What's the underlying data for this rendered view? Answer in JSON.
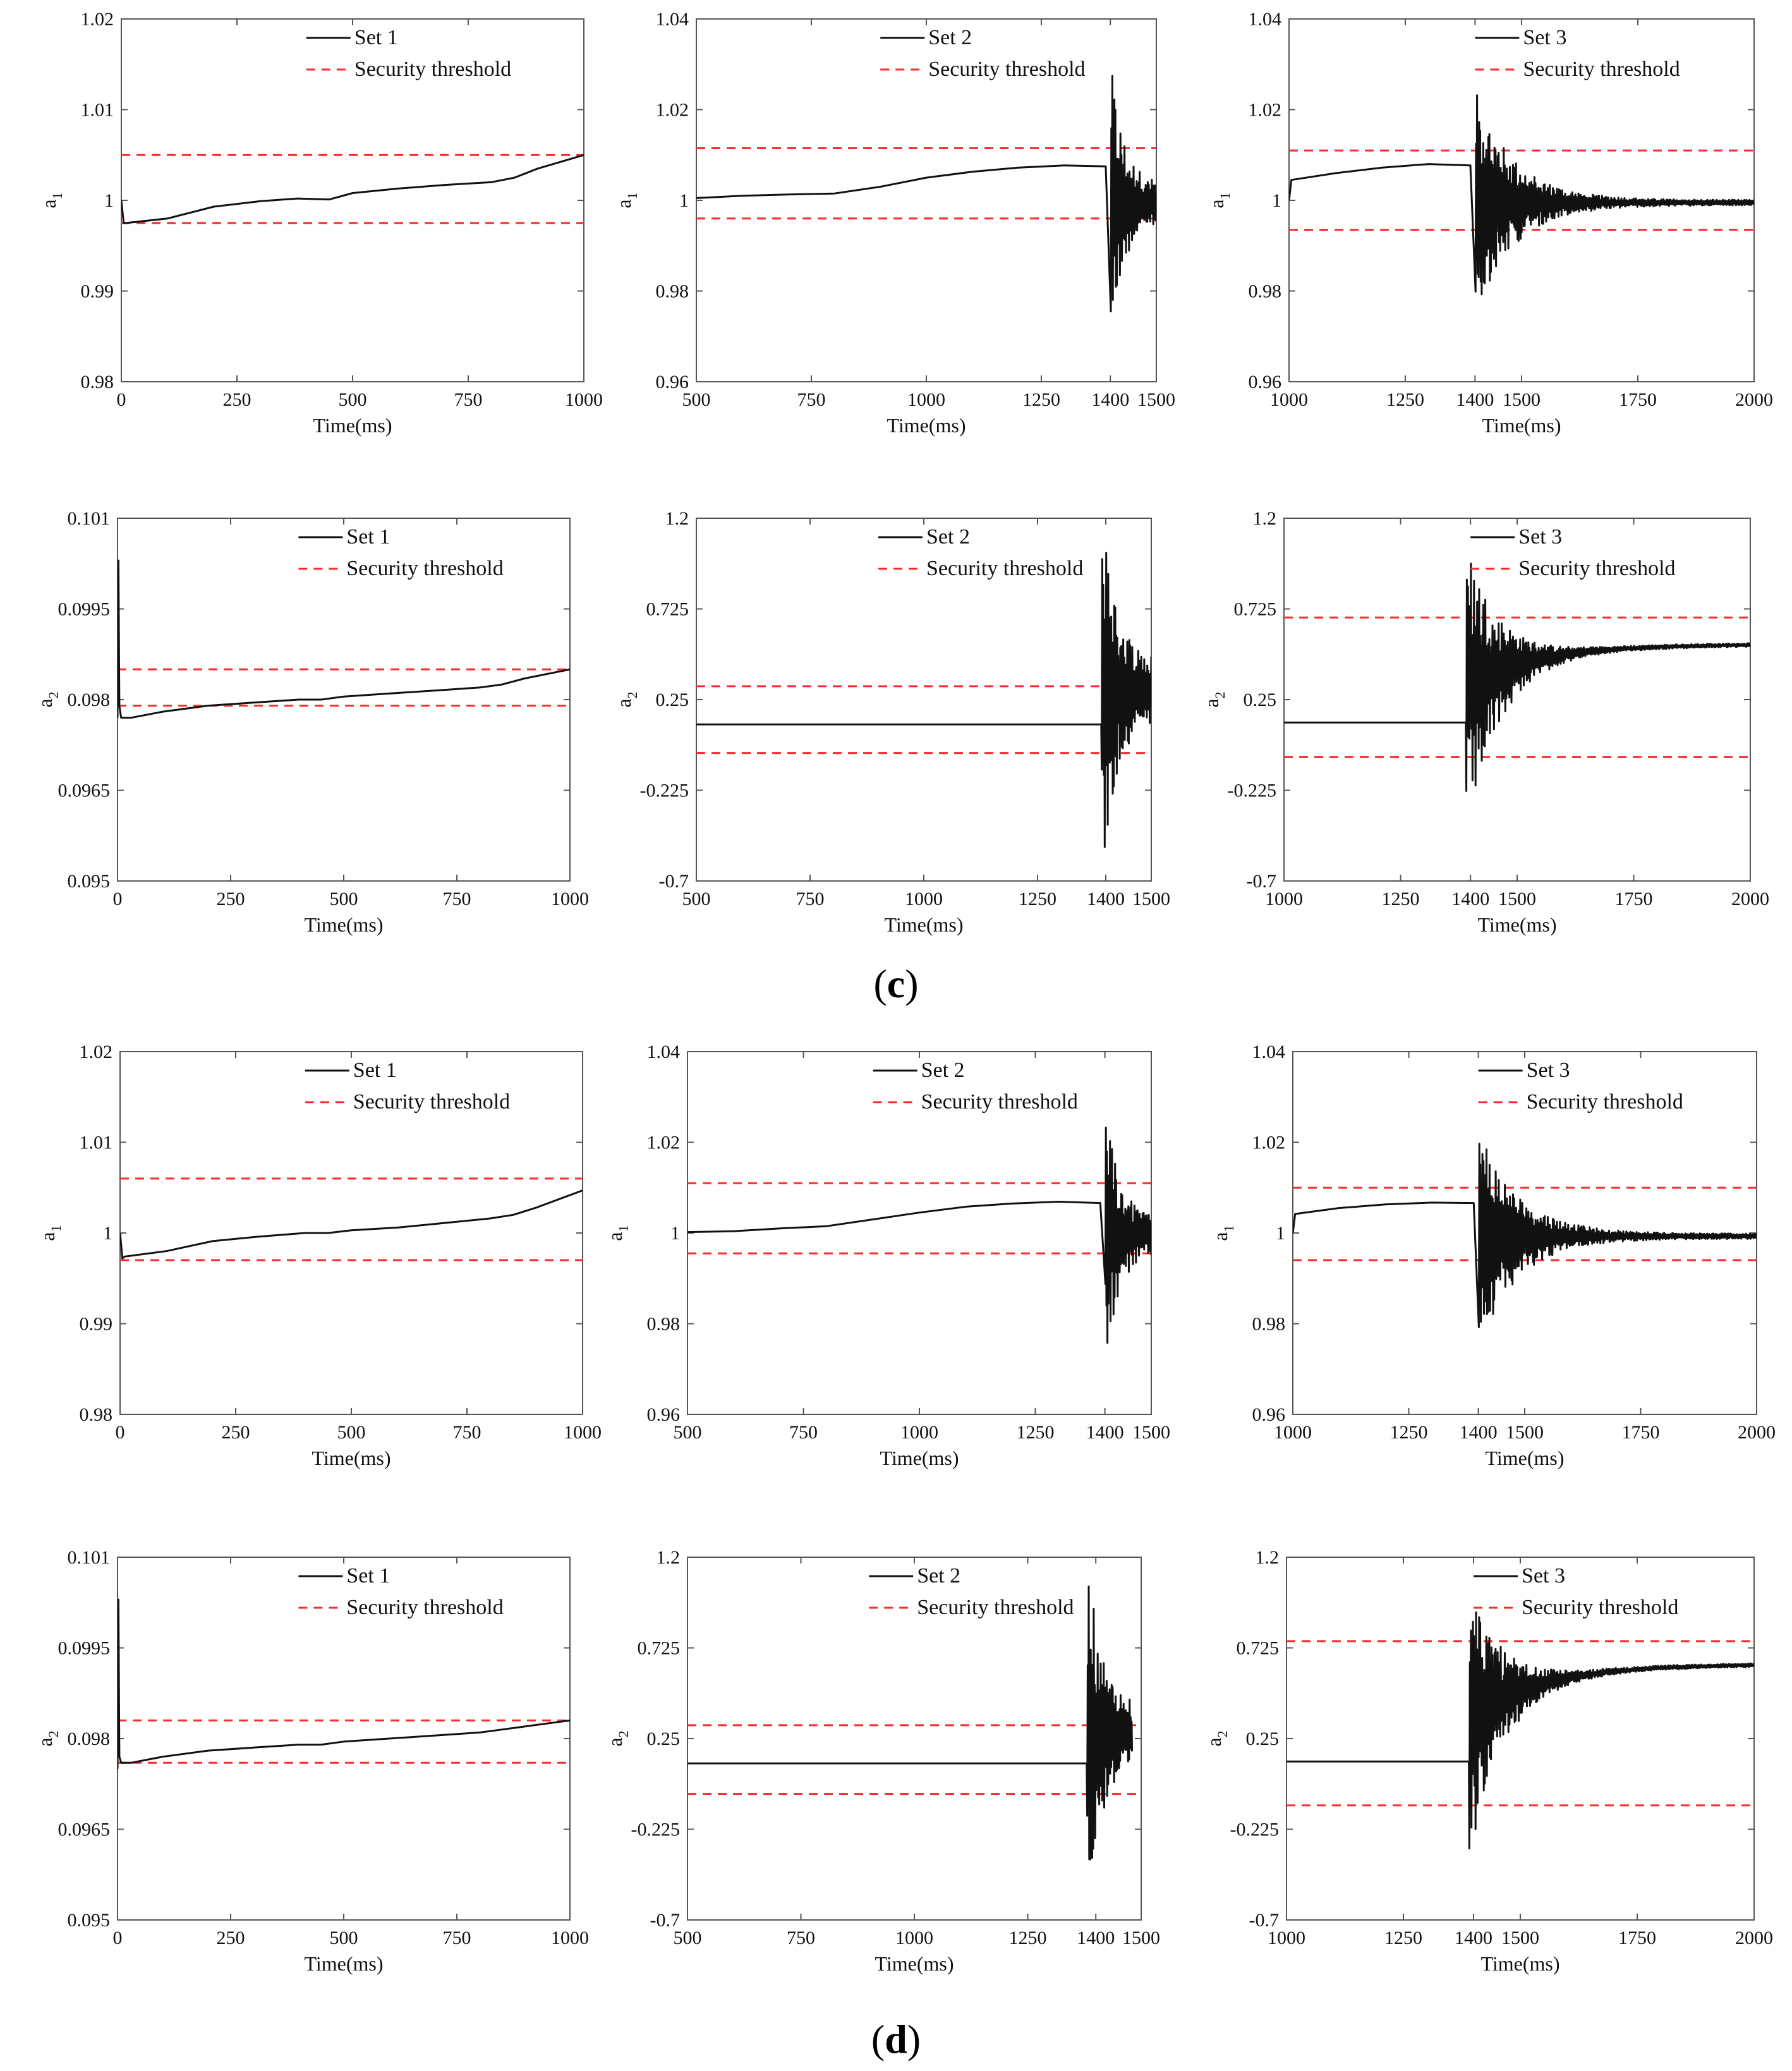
{
  "colors": {
    "series": "#111111",
    "threshold": "#ff2a2a",
    "axis": "#555555",
    "background": "#ffffff"
  },
  "panel_labels": [
    {
      "open": "(",
      "letter": "c",
      "close": ")"
    },
    {
      "open": "(",
      "letter": "d",
      "close": ")"
    }
  ],
  "chart_data": [
    {
      "id": "c-a1-set1",
      "type": "line",
      "group": "c",
      "ylabel_base": "a",
      "ylabel_sub": "1",
      "xlabel": "Time(ms)",
      "xlim": [
        0,
        1000
      ],
      "xticks": [
        0,
        250,
        500,
        750,
        1000
      ],
      "xtick_labels": [
        "0",
        "250",
        "500",
        "750",
        "1000"
      ],
      "ylim": [
        0.98,
        1.02
      ],
      "yticks": [
        0.98,
        0.99,
        1.0,
        1.01,
        1.02
      ],
      "ytick_labels": [
        "0.98",
        "0.99",
        "1",
        "1.01",
        "1.02"
      ],
      "legend": {
        "series": "Set 1",
        "threshold": "Security threshold"
      },
      "series": [
        {
          "name": "Set 1",
          "kind": "smooth",
          "x": [
            0,
            5,
            10,
            100,
            200,
            300,
            380,
            450,
            500,
            600,
            700,
            800,
            850,
            900,
            1000
          ],
          "y": [
            1.0,
            0.9975,
            0.9975,
            0.998,
            0.9993,
            0.9999,
            1.0002,
            1.0001,
            1.0008,
            1.0013,
            1.0017,
            1.002,
            1.0025,
            1.0035,
            1.005
          ]
        }
      ],
      "thresholds": [
        1.005,
        0.9975
      ]
    },
    {
      "id": "c-a1-set2",
      "type": "line",
      "group": "c",
      "ylabel_base": "a",
      "ylabel_sub": "1",
      "xlabel": "Time(ms)",
      "xlim": [
        500,
        1500
      ],
      "xticks": [
        500,
        750,
        1000,
        1250,
        1400,
        1500
      ],
      "xtick_labels": [
        "500",
        "750",
        "1000",
        "1250",
        "1400",
        "1500"
      ],
      "ylim": [
        0.96,
        1.04
      ],
      "yticks": [
        0.96,
        0.98,
        1.0,
        1.02,
        1.04
      ],
      "ytick_labels": [
        "0.96",
        "0.98",
        "1",
        "1.02",
        "1.04"
      ],
      "legend": {
        "series": "Set 2",
        "threshold": "Security threshold"
      },
      "series": [
        {
          "name": "Set 2",
          "kind": "smooth+oscillation",
          "x": [
            500,
            600,
            700,
            800,
            900,
            1000,
            1100,
            1200,
            1300,
            1390
          ],
          "y": [
            1.0005,
            1.001,
            1.0013,
            1.0015,
            1.003,
            1.005,
            1.0063,
            1.0072,
            1.0077,
            1.0075
          ],
          "osc_start": 1400,
          "osc_end": 1500,
          "osc_center": 0.9995,
          "osc_start_amp": 0.032,
          "osc_end_amp": 0.004,
          "osc_decay": 0.035
        }
      ],
      "thresholds": [
        1.0115,
        0.996
      ]
    },
    {
      "id": "c-a1-set3",
      "type": "line",
      "group": "c",
      "ylabel_base": "a",
      "ylabel_sub": "1",
      "xlabel": "Time(ms)",
      "xlim": [
        1000,
        2000
      ],
      "xticks": [
        1000,
        1250,
        1400,
        1500,
        1750,
        2000
      ],
      "xtick_labels": [
        "1000",
        "1250",
        "1400",
        "1500",
        "1750",
        "2000"
      ],
      "ylim": [
        0.96,
        1.04
      ],
      "yticks": [
        0.96,
        0.98,
        1.0,
        1.02,
        1.04
      ],
      "ytick_labels": [
        "0.96",
        "0.98",
        "1",
        "1.02",
        "1.04"
      ],
      "legend": {
        "series": "Set 3",
        "threshold": "Security threshold"
      },
      "series": [
        {
          "name": "Set 3",
          "kind": "smooth+oscillation",
          "x": [
            1000,
            1005,
            1100,
            1200,
            1300,
            1390
          ],
          "y": [
            1.0,
            1.0045,
            1.006,
            1.0072,
            1.008,
            1.0077
          ],
          "osc_start": 1400,
          "osc_end": 2000,
          "osc_center": 0.9995,
          "osc_start_amp": 0.025,
          "osc_end_amp": 0.0006,
          "osc_decay": 0.012
        }
      ],
      "thresholds": [
        1.011,
        0.9935
      ]
    },
    {
      "id": "c-a2-set1",
      "type": "line",
      "group": "c",
      "ylabel_base": "a",
      "ylabel_sub": "2",
      "xlabel": "Time(ms)",
      "xlim": [
        0,
        1000
      ],
      "xticks": [
        0,
        250,
        500,
        750,
        1000
      ],
      "xtick_labels": [
        "0",
        "250",
        "500",
        "750",
        "1000"
      ],
      "ylim": [
        0.095,
        0.101
      ],
      "yticks": [
        0.095,
        0.0965,
        0.098,
        0.0995,
        0.101
      ],
      "ytick_labels": [
        "0.095",
        "0.0965",
        "0.098",
        "0.0995",
        "0.101"
      ],
      "legend": {
        "series": "Set 1",
        "threshold": "Security threshold"
      },
      "series": [
        {
          "name": "Set 1",
          "kind": "smooth",
          "x": [
            0,
            2,
            4,
            8,
            30,
            100,
            200,
            300,
            400,
            450,
            500,
            600,
            700,
            800,
            850,
            900,
            1000
          ],
          "y": [
            0.0977,
            0.1003,
            0.0979,
            0.0977,
            0.0977,
            0.0978,
            0.0979,
            0.09795,
            0.098,
            0.098,
            0.09805,
            0.0981,
            0.09815,
            0.0982,
            0.09825,
            0.09835,
            0.0985
          ]
        }
      ],
      "thresholds": [
        0.0985,
        0.0979
      ]
    },
    {
      "id": "c-a2-set2",
      "type": "line",
      "group": "c",
      "ylabel_base": "a",
      "ylabel_sub": "2",
      "xlabel": "Time(ms)",
      "xlim": [
        500,
        1500
      ],
      "xticks": [
        500,
        750,
        1000,
        1250,
        1400,
        1500
      ],
      "xtick_labels": [
        "500",
        "750",
        "1000",
        "1250",
        "1400",
        "1500"
      ],
      "ylim": [
        -0.7,
        1.2
      ],
      "yticks": [
        -0.7,
        -0.225,
        0.25,
        0.725,
        1.2
      ],
      "ytick_labels": [
        "-0.7",
        "-0.225",
        "0.25",
        "0.725",
        "1.2"
      ],
      "legend": {
        "series": "Set 2",
        "threshold": "Security threshold"
      },
      "series": [
        {
          "name": "Set 2",
          "kind": "flat+oscillation",
          "x": [
            500,
            1390
          ],
          "y": [
            0.12,
            0.12
          ],
          "osc_start": 1390,
          "osc_end": 1500,
          "osc_center": 0.3,
          "osc_start_amp": 1.05,
          "osc_end_amp": 0.15,
          "osc_decay": 0.03
        }
      ],
      "thresholds": [
        0.32,
        -0.03
      ]
    },
    {
      "id": "c-a2-set3",
      "type": "line",
      "group": "c",
      "ylabel_base": "a",
      "ylabel_sub": "2",
      "xlabel": "Time(ms)",
      "xlim": [
        1000,
        2000
      ],
      "xticks": [
        1000,
        1250,
        1400,
        1500,
        1750,
        2000
      ],
      "xtick_labels": [
        "1000",
        "1250",
        "1400",
        "1500",
        "1750",
        "2000"
      ],
      "ylim": [
        -0.7,
        1.2
      ],
      "yticks": [
        -0.7,
        -0.225,
        0.25,
        0.725,
        1.2
      ],
      "ytick_labels": [
        "-0.7",
        "-0.225",
        "0.25",
        "0.725",
        "1.2"
      ],
      "legend": {
        "series": "Set 3",
        "threshold": "Security threshold"
      },
      "series": [
        {
          "name": "Set 3",
          "kind": "flat+oscillation",
          "x": [
            1000,
            1390
          ],
          "y": [
            0.13,
            0.13
          ],
          "osc_start": 1390,
          "osc_end": 2000,
          "osc_center": 0.32,
          "osc_start_amp": 0.8,
          "osc_end_amp": 0.01,
          "osc_decay": 0.015,
          "osc_drift_to": 0.54
        }
      ],
      "thresholds": [
        0.68,
        -0.05
      ]
    },
    {
      "id": "d-a1-set1",
      "type": "line",
      "group": "d",
      "ylabel_base": "a",
      "ylabel_sub": "1",
      "xlabel": "Time(ms)",
      "xlim": [
        0,
        1000
      ],
      "xticks": [
        0,
        250,
        500,
        750,
        1000
      ],
      "xtick_labels": [
        "0",
        "250",
        "500",
        "750",
        "1000"
      ],
      "ylim": [
        0.98,
        1.02
      ],
      "yticks": [
        0.98,
        0.99,
        1.0,
        1.01,
        1.02
      ],
      "ytick_labels": [
        "0.98",
        "0.99",
        "1",
        "1.01",
        "1.02"
      ],
      "legend": {
        "series": "Set 1",
        "threshold": "Security threshold"
      },
      "series": [
        {
          "name": "Set 1",
          "kind": "smooth",
          "x": [
            0,
            5,
            10,
            100,
            200,
            300,
            400,
            450,
            500,
            600,
            700,
            800,
            850,
            900,
            1000
          ],
          "y": [
            1.0,
            0.9972,
            0.9974,
            0.998,
            0.9991,
            0.9996,
            1.0,
            1.0,
            1.0003,
            1.0006,
            1.0011,
            1.0016,
            1.002,
            1.0028,
            1.0047
          ]
        }
      ],
      "thresholds": [
        1.006,
        0.997
      ]
    },
    {
      "id": "d-a1-set2",
      "type": "line",
      "group": "d",
      "ylabel_base": "a",
      "ylabel_sub": "1",
      "xlabel": "Time(ms)",
      "xlim": [
        500,
        1500
      ],
      "xticks": [
        500,
        750,
        1000,
        1250,
        1400,
        1500
      ],
      "xtick_labels": [
        "500",
        "750",
        "1000",
        "1250",
        "1400",
        "1500"
      ],
      "ylim": [
        0.96,
        1.04
      ],
      "yticks": [
        0.96,
        0.98,
        1.0,
        1.02,
        1.04
      ],
      "ytick_labels": [
        "0.96",
        "0.98",
        "1",
        "1.02",
        "1.04"
      ],
      "legend": {
        "series": "Set 2",
        "threshold": "Security threshold"
      },
      "series": [
        {
          "name": "Set 2",
          "kind": "smooth+oscillation",
          "x": [
            500,
            600,
            700,
            800,
            900,
            1000,
            1100,
            1200,
            1300,
            1390
          ],
          "y": [
            1.0002,
            1.0004,
            1.001,
            1.0015,
            1.003,
            1.0045,
            1.0058,
            1.0065,
            1.0069,
            1.0066
          ],
          "osc_start": 1400,
          "osc_end": 1500,
          "osc_center": 0.9995,
          "osc_start_amp": 0.03,
          "osc_end_amp": 0.004,
          "osc_decay": 0.035
        }
      ],
      "thresholds": [
        1.011,
        0.9955
      ]
    },
    {
      "id": "d-a1-set3",
      "type": "line",
      "group": "d",
      "ylabel_base": "a",
      "ylabel_sub": "1",
      "xlabel": "Time(ms)",
      "xlim": [
        1000,
        2000
      ],
      "xticks": [
        1000,
        1250,
        1400,
        1500,
        1750,
        2000
      ],
      "xtick_labels": [
        "1000",
        "1250",
        "1400",
        "1500",
        "1750",
        "2000"
      ],
      "ylim": [
        0.96,
        1.04
      ],
      "yticks": [
        0.96,
        0.98,
        1.0,
        1.02,
        1.04
      ],
      "ytick_labels": [
        "0.96",
        "0.98",
        "1",
        "1.02",
        "1.04"
      ],
      "legend": {
        "series": "Set 3",
        "threshold": "Security threshold"
      },
      "series": [
        {
          "name": "Set 3",
          "kind": "smooth+oscillation",
          "x": [
            1000,
            1005,
            1100,
            1200,
            1300,
            1390
          ],
          "y": [
            1.0,
            1.0042,
            1.0055,
            1.0063,
            1.0067,
            1.0066
          ],
          "osc_start": 1400,
          "osc_end": 2000,
          "osc_center": 0.9993,
          "osc_start_amp": 0.025,
          "osc_end_amp": 0.0006,
          "osc_decay": 0.012
        }
      ],
      "thresholds": [
        1.01,
        0.994
      ]
    },
    {
      "id": "d-a2-set1",
      "type": "line",
      "group": "d",
      "ylabel_base": "a",
      "ylabel_sub": "2",
      "xlabel": "Time(ms)",
      "xlim": [
        0,
        1000
      ],
      "xticks": [
        0,
        250,
        500,
        750,
        1000
      ],
      "xtick_labels": [
        "0",
        "250",
        "500",
        "750",
        "1000"
      ],
      "ylim": [
        0.095,
        0.101
      ],
      "yticks": [
        0.095,
        0.0965,
        0.098,
        0.0995,
        0.101
      ],
      "ytick_labels": [
        "0.095",
        "0.0965",
        "0.098",
        "0.0995",
        "0.101"
      ],
      "legend": {
        "series": "Set 1",
        "threshold": "Security threshold"
      },
      "series": [
        {
          "name": "Set 1",
          "kind": "smooth",
          "x": [
            0,
            2,
            4,
            8,
            30,
            100,
            200,
            300,
            400,
            450,
            500,
            600,
            700,
            800,
            850,
            900,
            1000
          ],
          "y": [
            0.0975,
            0.1003,
            0.0977,
            0.0976,
            0.0976,
            0.0977,
            0.0978,
            0.09785,
            0.0979,
            0.0979,
            0.09795,
            0.098,
            0.09805,
            0.0981,
            0.09815,
            0.0982,
            0.0983
          ]
        }
      ],
      "thresholds": [
        0.0983,
        0.0976
      ]
    },
    {
      "id": "d-a2-set2",
      "type": "line",
      "group": "d",
      "ylabel_base": "a",
      "ylabel_sub": "2",
      "xlabel": "Time(ms)",
      "xlim": [
        500,
        1500
      ],
      "xticks": [
        500,
        750,
        1000,
        1250,
        1400,
        1500
      ],
      "xtick_labels": [
        "500",
        "750",
        "1000",
        "1250",
        "1400",
        "1500"
      ],
      "ylim": [
        -0.7,
        1.2
      ],
      "yticks": [
        -0.7,
        -0.225,
        0.25,
        0.725,
        1.2
      ],
      "ytick_labels": [
        "-0.7",
        "-0.225",
        "0.25",
        "0.725",
        "1.2"
      ],
      "legend": {
        "series": "Set 2",
        "threshold": "Security threshold"
      },
      "series": [
        {
          "name": "Set 2",
          "kind": "flat+oscillation",
          "x": [
            500,
            1380
          ],
          "y": [
            0.12,
            0.12
          ],
          "osc_start": 1380,
          "osc_end": 1480,
          "osc_center": 0.28,
          "osc_start_amp": 0.95,
          "osc_end_amp": 0.15,
          "osc_decay": 0.03
        }
      ],
      "thresholds": [
        0.32,
        -0.04
      ]
    },
    {
      "id": "d-a2-set3",
      "type": "line",
      "group": "d",
      "ylabel_base": "a",
      "ylabel_sub": "2",
      "xlabel": "Time(ms)",
      "xlim": [
        1000,
        2000
      ],
      "xticks": [
        1000,
        1250,
        1400,
        1500,
        1750,
        2000
      ],
      "xtick_labels": [
        "1000",
        "1250",
        "1400",
        "1500",
        "1750",
        "2000"
      ],
      "ylim": [
        -0.7,
        1.2
      ],
      "yticks": [
        -0.7,
        -0.225,
        0.25,
        0.725,
        1.2
      ],
      "ytick_labels": [
        "-0.7",
        "-0.225",
        "0.25",
        "0.725",
        "1.2"
      ],
      "legend": {
        "series": "Set 3",
        "threshold": "Security threshold"
      },
      "series": [
        {
          "name": "Set 3",
          "kind": "flat+oscillation",
          "x": [
            1000,
            1390
          ],
          "y": [
            0.13,
            0.13
          ],
          "osc_start": 1390,
          "osc_end": 2000,
          "osc_center": 0.35,
          "osc_start_amp": 0.75,
          "osc_end_amp": 0.01,
          "osc_decay": 0.015,
          "osc_drift_to": 0.64
        }
      ],
      "thresholds": [
        0.76,
        -0.1
      ]
    }
  ]
}
